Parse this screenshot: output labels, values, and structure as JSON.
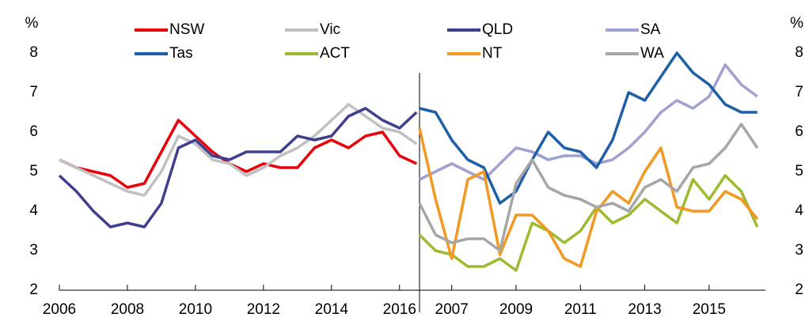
{
  "chart_data": [
    {
      "type": "line",
      "y_label": "%",
      "axis_side": "left",
      "xlim": [
        2006,
        2016.75
      ],
      "ylim": [
        2,
        8
      ],
      "yticks": [
        2,
        3,
        4,
        5,
        6,
        7,
        8
      ],
      "xticks": [
        2006,
        2008,
        2010,
        2012,
        2014,
        2016
      ],
      "x": [
        2006,
        2006.5,
        2007,
        2007.5,
        2008,
        2008.5,
        2009,
        2009.5,
        2010,
        2010.5,
        2011,
        2011.5,
        2012,
        2012.5,
        2013,
        2013.5,
        2014,
        2014.5,
        2015,
        2015.5,
        2016,
        2016.5
      ],
      "series": [
        {
          "name": "NSW",
          "color": "#e8000b",
          "values": [
            5.3,
            5.1,
            5.0,
            4.9,
            4.6,
            4.7,
            5.5,
            6.3,
            5.9,
            5.5,
            5.2,
            5.0,
            5.2,
            5.1,
            5.1,
            5.6,
            5.8,
            5.6,
            5.9,
            6.0,
            5.4,
            5.2
          ]
        },
        {
          "name": "Vic",
          "color": "#c0c0c0",
          "values": [
            5.3,
            5.1,
            4.9,
            4.7,
            4.5,
            4.4,
            5.0,
            5.9,
            5.7,
            5.3,
            5.2,
            4.9,
            5.1,
            5.4,
            5.6,
            5.9,
            6.3,
            6.7,
            6.4,
            6.1,
            6.0,
            5.7
          ]
        },
        {
          "name": "QLD",
          "color": "#3f3f8f",
          "values": [
            4.9,
            4.5,
            4.0,
            3.6,
            3.7,
            3.6,
            4.2,
            5.6,
            5.8,
            5.4,
            5.3,
            5.5,
            5.5,
            5.5,
            5.9,
            5.8,
            5.9,
            6.4,
            6.6,
            6.3,
            6.1,
            6.5
          ]
        }
      ]
    },
    {
      "type": "line",
      "y_label": "%",
      "axis_side": "right",
      "xlim": [
        2006,
        2016.75
      ],
      "ylim": [
        2,
        8
      ],
      "yticks": [
        2,
        3,
        4,
        5,
        6,
        7,
        8
      ],
      "xticks": [
        2007,
        2009,
        2011,
        2013,
        2015
      ],
      "x": [
        2006,
        2006.5,
        2007,
        2007.5,
        2008,
        2008.5,
        2009,
        2009.5,
        2010,
        2010.5,
        2011,
        2011.5,
        2012,
        2012.5,
        2013,
        2013.5,
        2014,
        2014.5,
        2015,
        2015.5,
        2016,
        2016.5
      ],
      "series": [
        {
          "name": "SA",
          "color": "#a0a0d2",
          "values": [
            4.8,
            5.0,
            5.2,
            5.0,
            4.8,
            5.2,
            5.6,
            5.5,
            5.3,
            5.4,
            5.4,
            5.2,
            5.3,
            5.6,
            6.0,
            6.5,
            6.8,
            6.6,
            6.9,
            7.7,
            7.2,
            6.9
          ]
        },
        {
          "name": "Tas",
          "color": "#1f5fa8",
          "values": [
            6.6,
            6.5,
            5.8,
            5.3,
            5.1,
            4.2,
            4.5,
            5.3,
            6.0,
            5.6,
            5.5,
            5.1,
            5.8,
            7.0,
            6.8,
            7.4,
            8.0,
            7.5,
            7.2,
            6.7,
            6.5,
            6.5
          ]
        },
        {
          "name": "ACT",
          "color": "#9bbb30",
          "values": [
            3.4,
            3.0,
            2.9,
            2.6,
            2.6,
            2.8,
            2.5,
            3.7,
            3.5,
            3.2,
            3.5,
            4.1,
            3.7,
            3.9,
            4.3,
            4.0,
            3.7,
            4.8,
            4.3,
            4.9,
            4.5,
            3.6
          ]
        },
        {
          "name": "NT",
          "color": "#f39820",
          "values": [
            6.1,
            4.3,
            2.8,
            4.8,
            5.0,
            2.9,
            3.9,
            3.9,
            3.5,
            2.8,
            2.6,
            4.0,
            4.5,
            4.2,
            5.0,
            5.6,
            4.1,
            4.0,
            4.0,
            4.5,
            4.3,
            3.8
          ]
        },
        {
          "name": "WA",
          "color": "#a6a6a6",
          "values": [
            4.2,
            3.4,
            3.2,
            3.3,
            3.3,
            3.0,
            4.7,
            5.3,
            4.6,
            4.4,
            4.3,
            4.1,
            4.2,
            4.0,
            4.6,
            4.8,
            4.5,
            5.1,
            5.2,
            5.6,
            6.2,
            5.6
          ]
        }
      ]
    }
  ]
}
